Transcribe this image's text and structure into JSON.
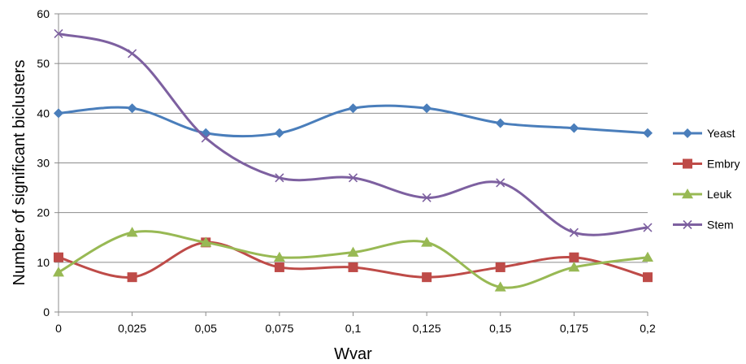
{
  "chart_data": {
    "type": "line",
    "title": "",
    "xlabel": "Wvar",
    "ylabel": "Number of significant biclusters",
    "categories": [
      "0",
      "0,025",
      "0,05",
      "0,075",
      "0,1",
      "0,125",
      "0,15",
      "0,175",
      "0,2"
    ],
    "ylim": [
      0,
      60
    ],
    "yticks": [
      "0",
      "10",
      "20",
      "30",
      "40",
      "50",
      "60"
    ],
    "grid": "horizontal",
    "smoothed": true,
    "legend_position": "right",
    "series": [
      {
        "name": "Yeast",
        "color": "#4a7ebb",
        "marker": "diamond",
        "values": [
          40,
          41,
          36,
          36,
          41,
          41,
          38,
          37,
          36
        ]
      },
      {
        "name": "Embry",
        "color": "#be4b48",
        "marker": "square",
        "values": [
          11,
          7,
          14,
          9,
          9,
          7,
          9,
          11,
          7
        ]
      },
      {
        "name": "Leuk",
        "color": "#98b954",
        "marker": "triangle",
        "values": [
          8,
          16,
          14,
          11,
          12,
          14,
          5,
          9,
          11
        ]
      },
      {
        "name": "Stem",
        "color": "#7d60a0",
        "marker": "x",
        "values": [
          56,
          52,
          35,
          27,
          27,
          23,
          26,
          16,
          17
        ]
      }
    ]
  }
}
